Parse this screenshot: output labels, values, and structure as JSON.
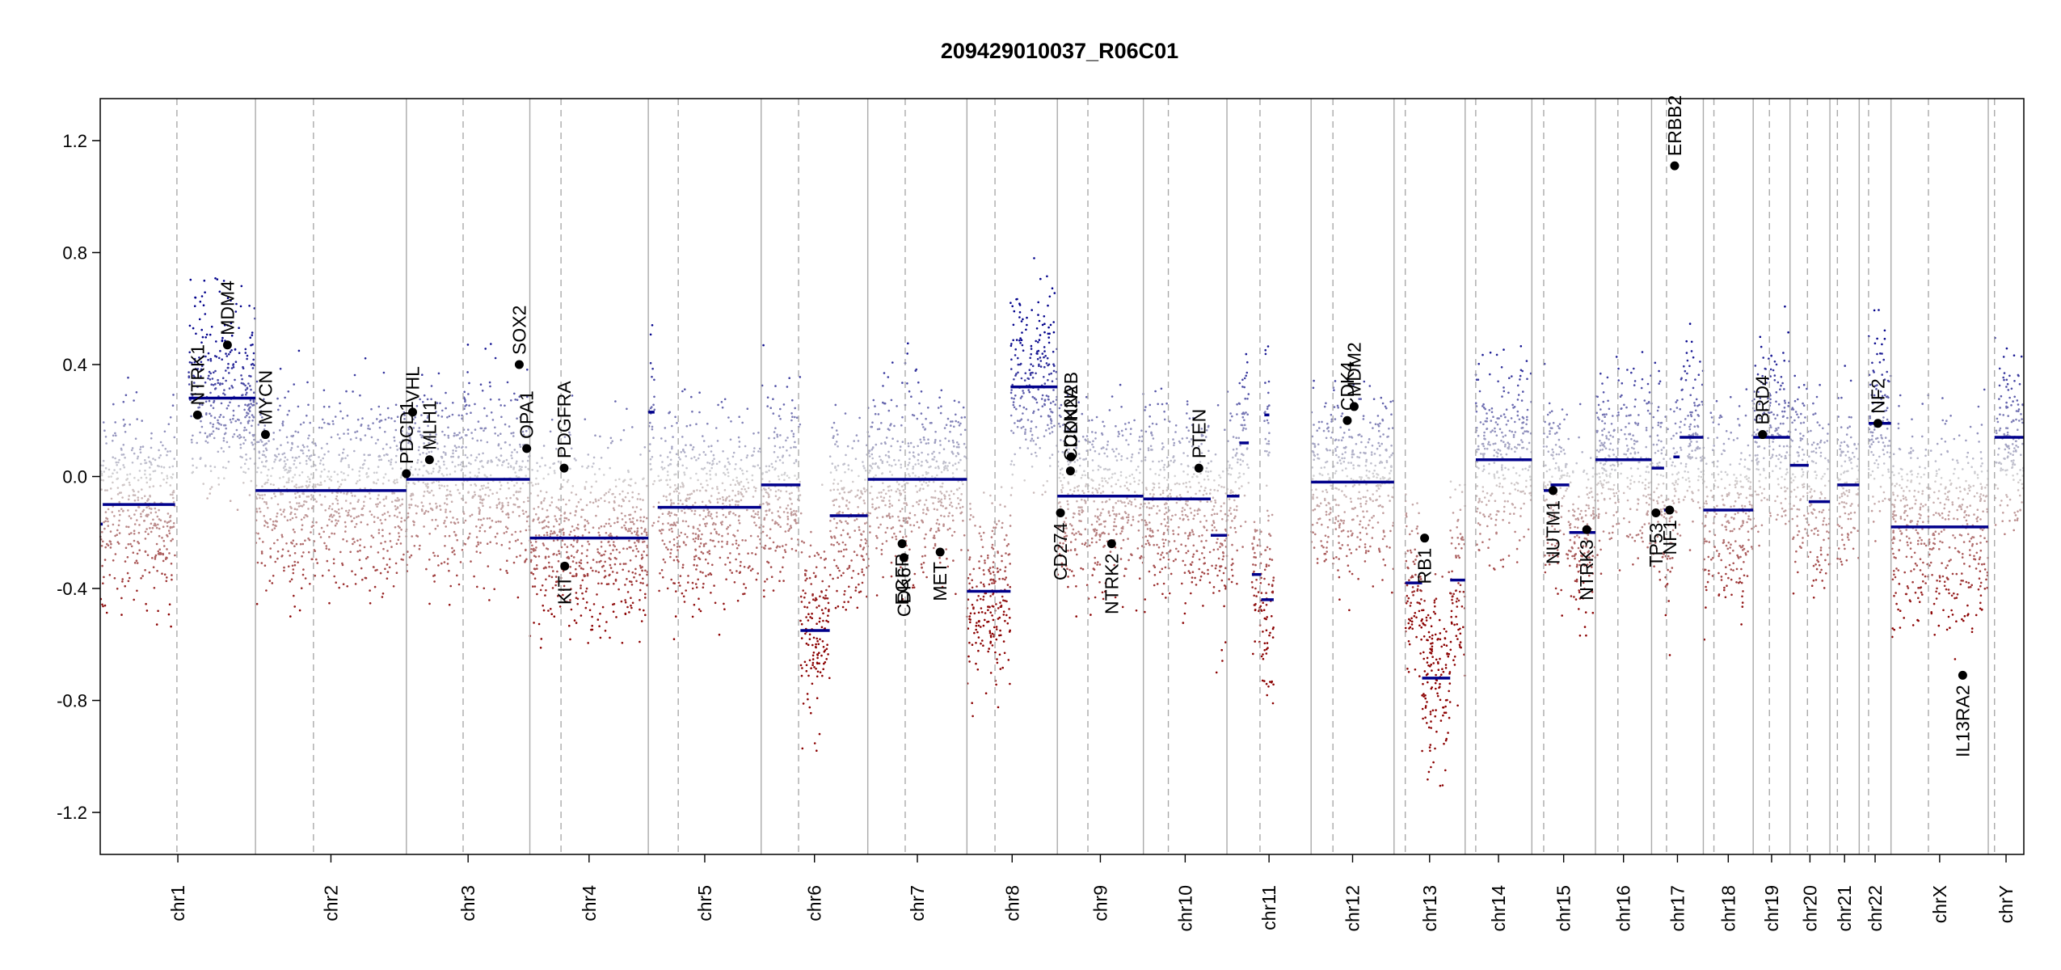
{
  "chart_data": {
    "type": "scatter",
    "title": "209429010037_R06C01",
    "xlabel": "",
    "ylabel": "",
    "ylim": [
      -1.35,
      1.35
    ],
    "yticks": [
      -1.2,
      -0.8,
      -0.4,
      0.0,
      0.4,
      0.8,
      1.2
    ],
    "ytick_labels": [
      "-1.2",
      "-0.8",
      "-0.4",
      "0.0",
      "0.4",
      "0.8",
      "1.2"
    ],
    "grid": false,
    "colors": {
      "gain": "#00008b",
      "loss": "#8b0000",
      "neutral": "#d3d3d3",
      "segment": "#00008b",
      "gene_point": "#000000",
      "separator": "#aaaaaa",
      "centromere": "#aaaaaa"
    },
    "chromosomes": [
      {
        "name": "chr1",
        "size": 249,
        "cen": 123,
        "segments": [
          {
            "s": 0,
            "e": 4,
            "v": -0.17
          },
          {
            "s": 4,
            "e": 120,
            "v": -0.1
          },
          {
            "s": 142,
            "e": 249,
            "v": 0.28
          }
        ]
      },
      {
        "name": "chr2",
        "size": 242,
        "cen": 93,
        "segments": [
          {
            "s": 0,
            "e": 242,
            "v": -0.05
          }
        ]
      },
      {
        "name": "chr3",
        "size": 198,
        "cen": 91,
        "segments": [
          {
            "s": 0,
            "e": 198,
            "v": -0.01
          }
        ]
      },
      {
        "name": "chr4",
        "size": 190,
        "cen": 50,
        "segments": [
          {
            "s": 0,
            "e": 190,
            "v": -0.22
          }
        ]
      },
      {
        "name": "chr5",
        "size": 181,
        "cen": 48,
        "segments": [
          {
            "s": 0,
            "e": 10,
            "v": 0.23
          },
          {
            "s": 15,
            "e": 181,
            "v": -0.11
          }
        ]
      },
      {
        "name": "chr6",
        "size": 171,
        "cen": 60,
        "segments": [
          {
            "s": 0,
            "e": 63,
            "v": -0.03
          },
          {
            "s": 63,
            "e": 110,
            "v": -0.55
          },
          {
            "s": 110,
            "e": 171,
            "v": -0.14
          }
        ]
      },
      {
        "name": "chr7",
        "size": 159,
        "cen": 60,
        "segments": [
          {
            "s": 0,
            "e": 159,
            "v": -0.01
          }
        ]
      },
      {
        "name": "chr8",
        "size": 145,
        "cen": 45,
        "segments": [
          {
            "s": 0,
            "e": 70,
            "v": -0.41
          },
          {
            "s": 70,
            "e": 145,
            "v": 0.32
          }
        ]
      },
      {
        "name": "chr9",
        "size": 138,
        "cen": 49,
        "segments": [
          {
            "s": 0,
            "e": 138,
            "v": -0.07
          }
        ]
      },
      {
        "name": "chr10",
        "size": 134,
        "cen": 40,
        "segments": [
          {
            "s": 0,
            "e": 108,
            "v": -0.08
          },
          {
            "s": 108,
            "e": 134,
            "v": -0.21
          }
        ]
      },
      {
        "name": "chr11",
        "size": 135,
        "cen": 53,
        "segments": [
          {
            "s": 0,
            "e": 20,
            "v": -0.07
          },
          {
            "s": 20,
            "e": 35,
            "v": 0.12
          },
          {
            "s": 40,
            "e": 55,
            "v": -0.35
          },
          {
            "s": 55,
            "e": 75,
            "v": -0.44
          },
          {
            "s": 60,
            "e": 68,
            "v": 0.22
          }
        ]
      },
      {
        "name": "chr12",
        "size": 133,
        "cen": 35,
        "segments": [
          {
            "s": 0,
            "e": 133,
            "v": -0.02
          }
        ]
      },
      {
        "name": "chr13",
        "size": 114,
        "cen": 18,
        "segments": [
          {
            "s": 18,
            "e": 45,
            "v": -0.38
          },
          {
            "s": 45,
            "e": 90,
            "v": -0.72
          },
          {
            "s": 90,
            "e": 114,
            "v": -0.37
          }
        ]
      },
      {
        "name": "chr14",
        "size": 107,
        "cen": 17,
        "segments": [
          {
            "s": 17,
            "e": 107,
            "v": 0.06
          }
        ]
      },
      {
        "name": "chr15",
        "size": 102,
        "cen": 19,
        "segments": [
          {
            "s": 19,
            "e": 30,
            "v": -0.05
          },
          {
            "s": 30,
            "e": 60,
            "v": -0.03
          },
          {
            "s": 60,
            "e": 102,
            "v": -0.2
          }
        ]
      },
      {
        "name": "chr16",
        "size": 90,
        "cen": 36,
        "segments": [
          {
            "s": 0,
            "e": 90,
            "v": 0.06
          }
        ]
      },
      {
        "name": "chr17",
        "size": 83,
        "cen": 24,
        "segments": [
          {
            "s": 0,
            "e": 20,
            "v": 0.03
          },
          {
            "s": 20,
            "e": 35,
            "v": -0.12
          },
          {
            "s": 35,
            "e": 45,
            "v": 0.07
          },
          {
            "s": 45,
            "e": 83,
            "v": 0.14
          }
        ]
      },
      {
        "name": "chr18",
        "size": 80,
        "cen": 17,
        "segments": [
          {
            "s": 0,
            "e": 80,
            "v": -0.12
          }
        ]
      },
      {
        "name": "chr19",
        "size": 59,
        "cen": 26,
        "segments": [
          {
            "s": 0,
            "e": 59,
            "v": 0.14
          }
        ]
      },
      {
        "name": "chr20",
        "size": 64,
        "cen": 28,
        "segments": [
          {
            "s": 0,
            "e": 30,
            "v": 0.04
          },
          {
            "s": 30,
            "e": 64,
            "v": -0.09
          }
        ]
      },
      {
        "name": "chr21",
        "size": 47,
        "cen": 12,
        "segments": [
          {
            "s": 12,
            "e": 47,
            "v": -0.03
          }
        ]
      },
      {
        "name": "chr22",
        "size": 51,
        "cen": 15,
        "segments": [
          {
            "s": 15,
            "e": 51,
            "v": 0.19
          }
        ]
      },
      {
        "name": "chrX",
        "size": 156,
        "cen": 60,
        "segments": [
          {
            "s": 0,
            "e": 156,
            "v": -0.18
          }
        ]
      },
      {
        "name": "chrY",
        "size": 57,
        "cen": 10,
        "segments": [
          {
            "s": 10,
            "e": 57,
            "v": 0.14
          }
        ]
      }
    ],
    "genes": [
      {
        "name": "NTRK1",
        "chr": "chr1",
        "pos": 156,
        "v": 0.22
      },
      {
        "name": "MDM4",
        "chr": "chr1",
        "pos": 204,
        "v": 0.47
      },
      {
        "name": "MYCN",
        "chr": "chr2",
        "pos": 16,
        "v": 0.15
      },
      {
        "name": "PDCD1",
        "chr": "chr2",
        "pos": 242,
        "v": 0.01
      },
      {
        "name": "VHL",
        "chr": "chr3",
        "pos": 10,
        "v": 0.23
      },
      {
        "name": "MLH1",
        "chr": "chr3",
        "pos": 37,
        "v": 0.06
      },
      {
        "name": "SOX2",
        "chr": "chr3",
        "pos": 181,
        "v": 0.4
      },
      {
        "name": "OPA1",
        "chr": "chr3",
        "pos": 193,
        "v": 0.1
      },
      {
        "name": "PDGFRA",
        "chr": "chr4",
        "pos": 55,
        "v": 0.03
      },
      {
        "name": "KIT",
        "chr": "chr4",
        "pos": 56,
        "v": -0.32
      },
      {
        "name": "EGFR",
        "chr": "chr7",
        "pos": 55,
        "v": -0.24
      },
      {
        "name": "CDK6",
        "chr": "chr7",
        "pos": 58,
        "v": -0.29
      },
      {
        "name": "MET",
        "chr": "chr7",
        "pos": 116,
        "v": -0.27
      },
      {
        "name": "CDKN2A",
        "chr": "chr9",
        "pos": 21,
        "v": 0.02
      },
      {
        "name": "CDKN2B",
        "chr": "chr9",
        "pos": 22,
        "v": 0.07
      },
      {
        "name": "CD274",
        "chr": "chr9",
        "pos": 5,
        "v": -0.13
      },
      {
        "name": "NTRK2",
        "chr": "chr9",
        "pos": 87,
        "v": -0.24
      },
      {
        "name": "PTEN",
        "chr": "chr10",
        "pos": 89,
        "v": 0.03
      },
      {
        "name": "CDK4",
        "chr": "chr12",
        "pos": 58,
        "v": 0.2
      },
      {
        "name": "MDM2",
        "chr": "chr12",
        "pos": 69,
        "v": 0.25
      },
      {
        "name": "RB1",
        "chr": "chr13",
        "pos": 49,
        "v": -0.22
      },
      {
        "name": "NUTM1",
        "chr": "chr15",
        "pos": 34,
        "v": -0.05
      },
      {
        "name": "NTRK3",
        "chr": "chr15",
        "pos": 88,
        "v": -0.19
      },
      {
        "name": "TP53",
        "chr": "chr17",
        "pos": 7,
        "v": -0.13
      },
      {
        "name": "NF1",
        "chr": "chr17",
        "pos": 29,
        "v": -0.12
      },
      {
        "name": "ERBB2",
        "chr": "chr17",
        "pos": 37,
        "v": 1.11
      },
      {
        "name": "BRD4",
        "chr": "chr19",
        "pos": 15,
        "v": 0.15
      },
      {
        "name": "NF2",
        "chr": "chr22",
        "pos": 30,
        "v": 0.19
      },
      {
        "name": "IL13RA2",
        "chr": "chrX",
        "pos": 115,
        "v": -0.71
      }
    ]
  }
}
